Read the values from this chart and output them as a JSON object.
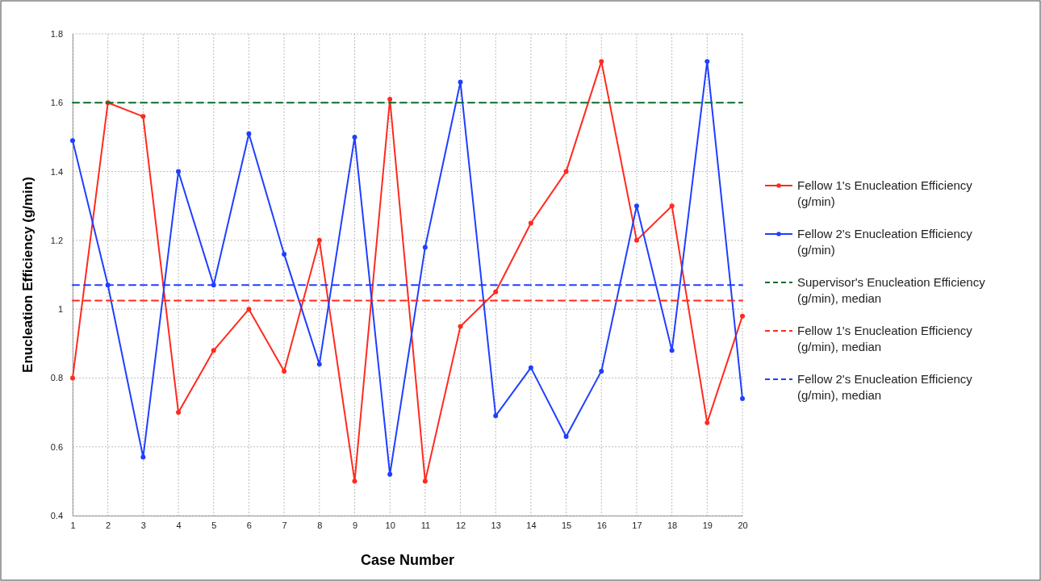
{
  "chart_data": {
    "type": "line",
    "xlabel": "Case Number",
    "ylabel": "Enucleation Efficiency (g/min)",
    "x": [
      1,
      2,
      3,
      4,
      5,
      6,
      7,
      8,
      9,
      10,
      11,
      12,
      13,
      14,
      15,
      16,
      17,
      18,
      19,
      20
    ],
    "xlim": [
      1,
      20
    ],
    "xticks": [
      1,
      2,
      3,
      4,
      5,
      6,
      7,
      8,
      9,
      10,
      11,
      12,
      13,
      14,
      15,
      16,
      17,
      18,
      19,
      20
    ],
    "ylim": [
      0.4,
      1.8
    ],
    "yticks": [
      0.4,
      0.6,
      0.8,
      1,
      1.2,
      1.4,
      1.6,
      1.8
    ],
    "grid": true,
    "legend": "right",
    "marker": "circle",
    "line_style": "solid",
    "series": [
      {
        "name": "Fellow 1's Enucleation Efficiency (g/min)",
        "color": "#ff2a1f",
        "values": [
          0.8,
          1.6,
          1.56,
          0.7,
          0.88,
          1.0,
          0.82,
          1.2,
          0.5,
          1.61,
          0.5,
          0.95,
          1.05,
          1.25,
          1.4,
          1.72,
          1.2,
          1.3,
          0.67,
          0.98
        ]
      },
      {
        "name": "Fellow 2's Enucleation Efficiency (g/min)",
        "color": "#1f3fff",
        "values": [
          1.49,
          1.07,
          0.57,
          1.4,
          1.07,
          1.51,
          1.16,
          0.84,
          1.5,
          0.52,
          1.18,
          1.66,
          0.69,
          0.83,
          0.63,
          0.82,
          1.3,
          0.88,
          1.72,
          0.74
        ]
      },
      {
        "name": "Supervisor's Enucleation Efficiency (g/min), median",
        "color": "#0b6e2a",
        "marker": "none",
        "line_style": "dashed",
        "values": [
          1.6,
          1.6,
          1.6,
          1.6,
          1.6,
          1.6,
          1.6,
          1.6,
          1.6,
          1.6,
          1.6,
          1.6,
          1.6,
          1.6,
          1.6,
          1.6,
          1.6,
          1.6,
          1.6,
          1.6
        ]
      },
      {
        "name": "Fellow 1's Enucleation Efficiency (g/min), median",
        "color": "#ff2a1f",
        "marker": "none",
        "line_style": "dashed",
        "values": [
          1.025,
          1.025,
          1.025,
          1.025,
          1.025,
          1.025,
          1.025,
          1.025,
          1.025,
          1.025,
          1.025,
          1.025,
          1.025,
          1.025,
          1.025,
          1.025,
          1.025,
          1.025,
          1.025,
          1.025
        ]
      },
      {
        "name": "Fellow 2's Enucleation Efficiency (g/min), median",
        "color": "#1f3fff",
        "marker": "none",
        "line_style": "dashed",
        "values": [
          1.07,
          1.07,
          1.07,
          1.07,
          1.07,
          1.07,
          1.07,
          1.07,
          1.07,
          1.07,
          1.07,
          1.07,
          1.07,
          1.07,
          1.07,
          1.07,
          1.07,
          1.07,
          1.07,
          1.07
        ]
      }
    ]
  }
}
